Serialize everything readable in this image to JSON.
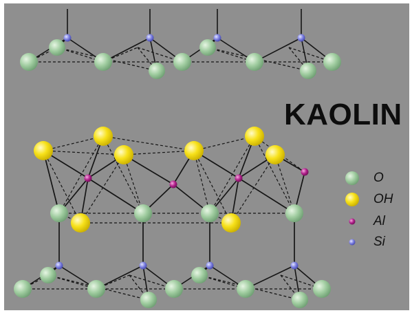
{
  "title": "KAOLIN",
  "legend": [
    {
      "symbol": "O",
      "color": "#9ecb9e"
    },
    {
      "symbol": "OH",
      "color": "#f7e11a"
    },
    {
      "symbol": "Al",
      "color": "#b0208a"
    },
    {
      "symbol": "Si",
      "color": "#7a7ee0"
    }
  ],
  "colors": {
    "background": "#8f8f8f",
    "bond": "#151515",
    "oxygen": "#9ecb9e",
    "hydroxyl": "#f7e11a",
    "aluminium": "#b0208a",
    "silicon": "#7a7ee0"
  }
}
